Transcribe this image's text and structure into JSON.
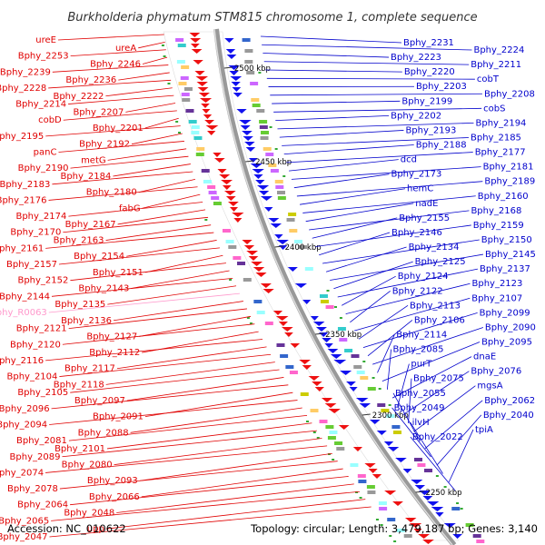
{
  "title": "Burkholderia phymatum STM815 chromosome 1, complete sequence",
  "accession": "Accession: NC_010622",
  "summary": "Topology: circular; Length: 3,479,187 bp; Genes: 3,140",
  "colors": {
    "left_label": "#e00000",
    "right_label": "#0000cc",
    "rna_label": "#ff99cc",
    "backbone": "#999999",
    "tick": "#228822"
  },
  "ticks": [
    "2500 kbp",
    "2450 kbp",
    "2400 kbp",
    "2350 kbp",
    "2300 kbp",
    "2250 kbp"
  ],
  "left_labels": [
    "ureE",
    "ureA",
    "Bphy_2253",
    "Bphy_2246",
    "Bphy_2239",
    "Bphy_2236",
    "Bphy_2228",
    "Bphy_2222",
    "Bphy_2214",
    "Bphy_2207",
    "cobD",
    "Bphy_2201",
    "Bphy_2195",
    "Bphy_2192",
    "panC",
    "metG",
    "Bphy_2190",
    "Bphy_2184",
    "Bphy_2183",
    "Bphy_2180",
    "Bphy_2176",
    "fabG",
    "Bphy_2174",
    "Bphy_2167",
    "Bphy_2170",
    "Bphy_2163",
    "Bphy_2161",
    "Bphy_2154",
    "Bphy_2157",
    "Bphy_2151",
    "Bphy_2152",
    "Bphy_2143",
    "Bphy_2144",
    "Bphy_2135",
    "Bphy_R0063",
    "Bphy_2136",
    "Bphy_2121",
    "Bphy_2127",
    "Bphy_2120",
    "Bphy_2112",
    "Bphy_2116",
    "Bphy_2117",
    "Bphy_2104",
    "Bphy_2118",
    "Bphy_2105",
    "Bphy_2097",
    "Bphy_2096",
    "Bphy_2091",
    "Bphy_2094",
    "Bphy_2088",
    "Bphy_2081",
    "Bphy_2101",
    "Bphy_2089",
    "Bphy_2080",
    "Bphy_2074",
    "Bphy_2093",
    "Bphy_2078",
    "Bphy_2066",
    "Bphy_2064",
    "Bphy_2048",
    "Bphy_2065",
    "upp",
    "Bphy_2047"
  ],
  "right_labels": [
    "Bphy_2231",
    "Bphy_2224",
    "Bphy_2223",
    "Bphy_2211",
    "Bphy_2220",
    "cobT",
    "Bphy_2203",
    "Bphy_2208",
    "Bphy_2199",
    "cobS",
    "Bphy_2202",
    "Bphy_2194",
    "Bphy_2193",
    "Bphy_2185",
    "Bphy_2188",
    "Bphy_2177",
    "dcd",
    "Bphy_2181",
    "Bphy_2173",
    "Bphy_2189",
    "hemC",
    "Bphy_2160",
    "nadE",
    "Bphy_2168",
    "Bphy_2155",
    "Bphy_2159",
    "Bphy_2146",
    "Bphy_2150",
    "Bphy_2134",
    "Bphy_2145",
    "Bphy_2125",
    "Bphy_2137",
    "Bphy_2124",
    "Bphy_2123",
    "Bphy_2122",
    "Bphy_2107",
    "Bphy_2113",
    "Bphy_2099",
    "Bphy_2106",
    "Bphy_2090",
    "Bphy_2114",
    "Bphy_2095",
    "Bphy_2085",
    "dnaE",
    "purT",
    "Bphy_2076",
    "Bphy_2075",
    "mgsA",
    "Bphy_2055",
    "Bphy_2062",
    "Bphy_2049",
    "Bphy_2040",
    "ilvH",
    "tpiA",
    "Bphy_2022"
  ]
}
